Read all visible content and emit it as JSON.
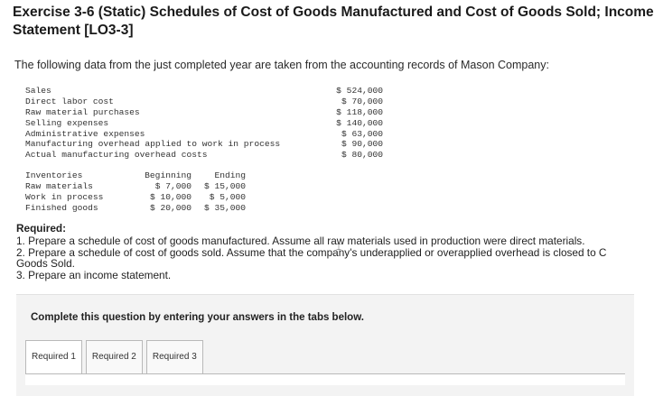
{
  "title": {
    "line1": "Exercise 3-6 (Static) Schedules of Cost of Goods Manufactured and Cost of Goods Sold; Income",
    "line2": "Statement [LO3-3]"
  },
  "intro": "The following data from the just completed year are taken from the accounting records of Mason Company:",
  "financial_items": [
    {
      "label": "Sales",
      "value": "$ 524,000"
    },
    {
      "label": "Direct labor cost",
      "value": "$ 70,000"
    },
    {
      "label": "Raw material purchases",
      "value": "$ 118,000"
    },
    {
      "label": "Selling expenses",
      "value": "$ 140,000"
    },
    {
      "label": "Administrative expenses",
      "value": "$ 63,000"
    },
    {
      "label": "Manufacturing overhead applied to work in process",
      "value": "$ 90,000"
    },
    {
      "label": "Actual manufacturing overhead costs",
      "value": "$ 80,000"
    }
  ],
  "inventories": {
    "headers": [
      "Inventories",
      "Beginning",
      "Ending"
    ],
    "rows": [
      [
        "Raw materials",
        "$ 7,000",
        "$ 15,000"
      ],
      [
        "Work in process",
        "$ 10,000",
        "$ 5,000"
      ],
      [
        "Finished goods",
        "$ 20,000",
        "$ 35,000"
      ]
    ]
  },
  "required": {
    "heading": "Required:",
    "items": [
      "1. Prepare a schedule of cost of goods manufactured. Assume all raw materials used in production were direct materials.",
      "2. Prepare a schedule of cost of goods sold. Assume that the company's underapplied or overapplied overhead is closed to C",
      "Goods Sold.",
      "3. Prepare an income statement."
    ]
  },
  "panel": {
    "instruction": "Complete this question by entering your answers in the tabs below.",
    "tabs": [
      "Required 1",
      "Required 2",
      "Required 3"
    ]
  }
}
